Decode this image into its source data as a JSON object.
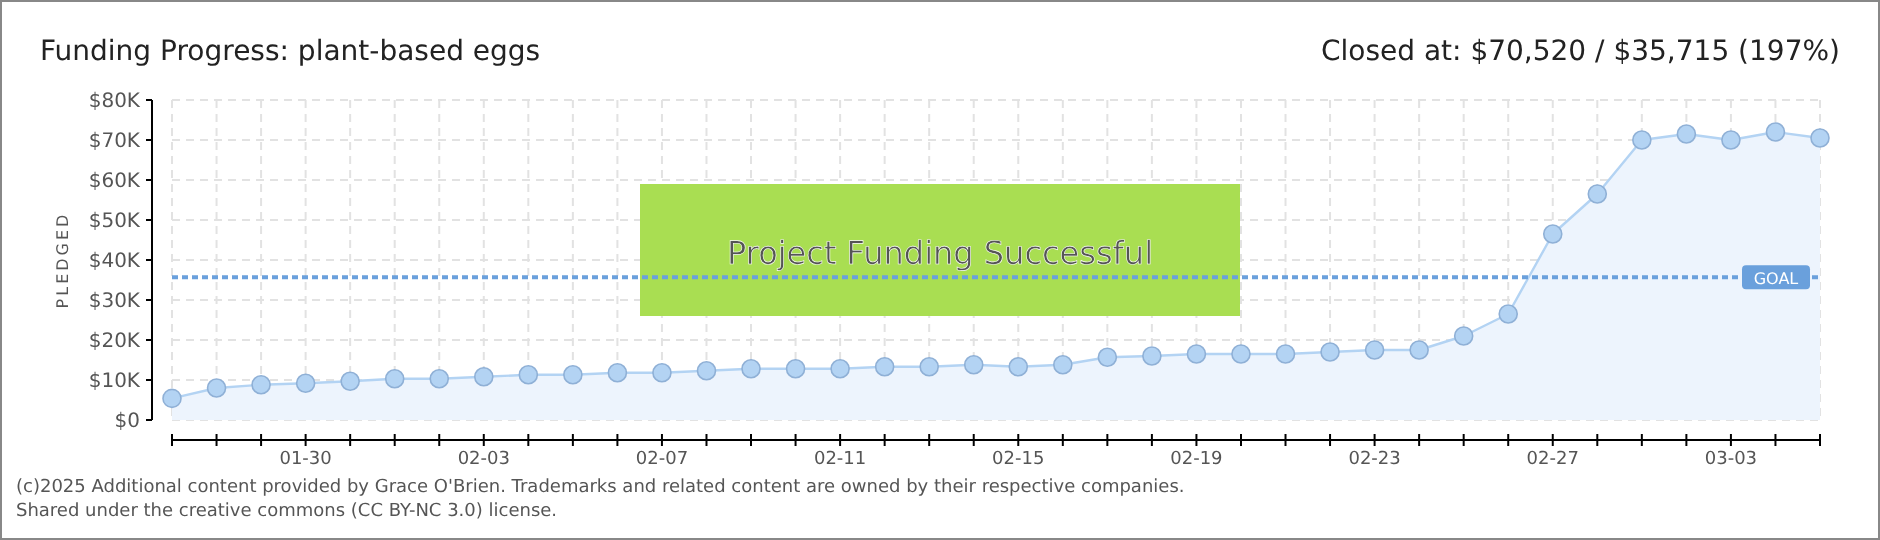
{
  "chart_data": {
    "type": "area",
    "title": "Funding Progress: plant-based eggs",
    "subtitle": "Closed at:  $70,520 /  $35,715 (197%)",
    "ylabel": "PLEDGED",
    "x": [
      "--01-27",
      "--01-28",
      "--01-29",
      "--01-30",
      "--01-31",
      "--02-01",
      "--02-02",
      "--02-03",
      "--02-04",
      "--02-05",
      "--02-06",
      "--02-07",
      "--02-08",
      "--02-09",
      "--02-10",
      "--02-11",
      "--02-12",
      "--02-13",
      "--02-14",
      "--02-15",
      "--02-16",
      "--02-17",
      "--02-18",
      "--02-19",
      "--02-20",
      "--02-21",
      "--02-22",
      "--02-23",
      "--02-24",
      "--02-25",
      "--02-26",
      "--02-27",
      "--02-28",
      "--03-01",
      "--03-02",
      "--03-03",
      "--03-04",
      "--03-05"
    ],
    "series": [
      {
        "color": "#b3d3f3",
        "values": [
          5400,
          8000,
          8800,
          9200,
          9700,
          10300,
          10300,
          10800,
          11300,
          11300,
          11800,
          11800,
          12300,
          12800,
          12800,
          12800,
          13300,
          13300,
          13800,
          13300,
          13800,
          15700,
          16000,
          16500,
          16500,
          16500,
          17000,
          17500,
          17500,
          21000,
          26500,
          46500,
          56500,
          70000,
          71500,
          70000,
          72000,
          70500
        ]
      }
    ],
    "ylim": [
      0,
      80000
    ],
    "yticks": [
      {
        "value": 0,
        "label": "$0"
      },
      {
        "value": 10000,
        "label": "$10K"
      },
      {
        "value": 20000,
        "label": "$20K"
      },
      {
        "value": 30000,
        "label": "$30K"
      },
      {
        "value": 40000,
        "label": "$40K"
      },
      {
        "value": 50000,
        "label": "$50K"
      },
      {
        "value": 60000,
        "label": "$60K"
      },
      {
        "value": 70000,
        "label": "$70K"
      },
      {
        "value": 80000,
        "label": "$80K"
      }
    ],
    "xlim": [
      "--01-27",
      "--03-05"
    ],
    "xticks": [
      {
        "value": "--01-27",
        "label": null
      },
      {
        "value": "--01-28",
        "label": null
      },
      {
        "value": "--01-29",
        "label": null
      },
      {
        "value": "--01-30",
        "label": "01-30"
      },
      {
        "value": "--01-31",
        "label": null
      },
      {
        "value": "--02-01",
        "label": null
      },
      {
        "value": "--02-02",
        "label": null
      },
      {
        "value": "--02-03",
        "label": "02-03"
      },
      {
        "value": "--02-04",
        "label": null
      },
      {
        "value": "--02-05",
        "label": null
      },
      {
        "value": "--02-06",
        "label": null
      },
      {
        "value": "--02-07",
        "label": "02-07"
      },
      {
        "value": "--02-08",
        "label": null
      },
      {
        "value": "--02-09",
        "label": null
      },
      {
        "value": "--02-10",
        "label": null
      },
      {
        "value": "--02-11",
        "label": "02-11"
      },
      {
        "value": "--02-12",
        "label": null
      },
      {
        "value": "--02-13",
        "label": null
      },
      {
        "value": "--02-14",
        "label": null
      },
      {
        "value": "--02-15",
        "label": "02-15"
      },
      {
        "value": "--02-16",
        "label": null
      },
      {
        "value": "--02-17",
        "label": null
      },
      {
        "value": "--02-18",
        "label": null
      },
      {
        "value": "--02-19",
        "label": "02-19"
      },
      {
        "value": "--02-20",
        "label": null
      },
      {
        "value": "--02-21",
        "label": null
      },
      {
        "value": "--02-22",
        "label": null
      },
      {
        "value": "--02-23",
        "label": "02-23"
      },
      {
        "value": "--02-24",
        "label": null
      },
      {
        "value": "--02-25",
        "label": null
      },
      {
        "value": "--02-26",
        "label": null
      },
      {
        "value": "--02-27",
        "label": "02-27"
      },
      {
        "value": "--02-28",
        "label": null
      },
      {
        "value": "--03-01",
        "label": null
      },
      {
        "value": "--03-02",
        "label": null
      },
      {
        "value": "--03-03",
        "label": "03-03"
      },
      {
        "value": "--03-04",
        "label": null
      },
      {
        "value": "--03-05",
        "label": null
      }
    ],
    "grid": true,
    "marker": "circle",
    "ref_lines": [
      {
        "axis": "y",
        "value": 35715,
        "label": "GOAL",
        "color": "#6aa0dc",
        "line_style": "dotted"
      }
    ],
    "annotations": [
      "Project Funding Successful",
      "(c)2025 Additional content provided by Grace O'Brien. Trademarks and related content are owned by their respective companies.",
      "Shared under the creative commons (CC BY-NC 3.0) license."
    ]
  }
}
